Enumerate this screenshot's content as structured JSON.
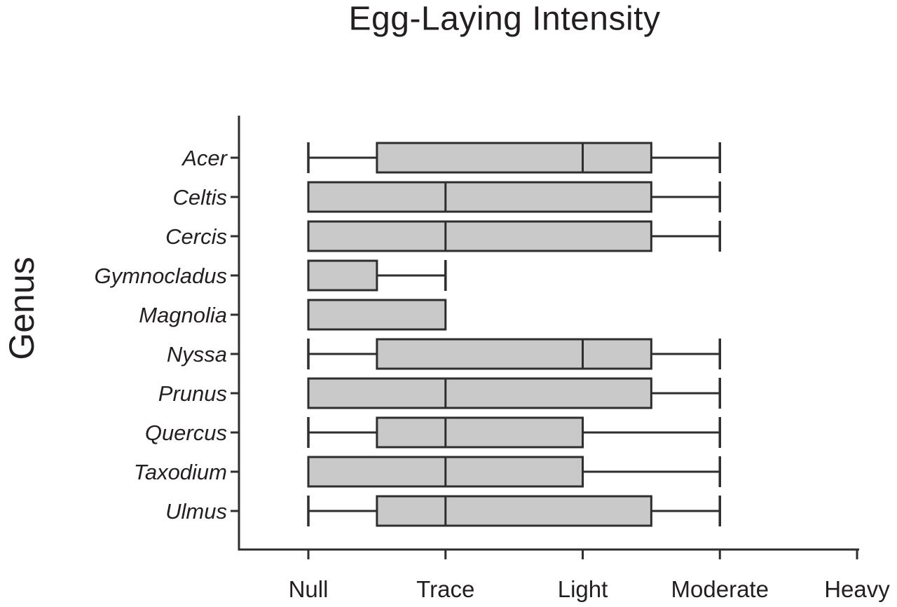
{
  "title": "Egg-Laying Intensity",
  "chart_data": {
    "type": "boxplot",
    "orientation": "horizontal",
    "title": "Egg-Laying Intensity",
    "ylabel": "Genus",
    "xlabel": "",
    "x_tick_labels": [
      "Null",
      "Trace",
      "Light",
      "Moderate",
      "Heavy"
    ],
    "x_tick_values": [
      1,
      2,
      3,
      4,
      5
    ],
    "xlim": [
      1,
      5
    ],
    "categories": [
      "Acer",
      "Celtis",
      "Cercis",
      "Gymnocladus",
      "Magnolia",
      "Nyssa",
      "Prunus",
      "Quercus",
      "Taxodium",
      "Ulmus"
    ],
    "series": [
      {
        "name": "Acer",
        "whisker_low": 1,
        "q1": 1.5,
        "median": 3,
        "q3": 3.5,
        "whisker_high": 4
      },
      {
        "name": "Celtis",
        "whisker_low": 1,
        "q1": 1,
        "median": 2,
        "q3": 3.5,
        "whisker_high": 4
      },
      {
        "name": "Cercis",
        "whisker_low": 1,
        "q1": 1,
        "median": 2,
        "q3": 3.5,
        "whisker_high": 4
      },
      {
        "name": "Gymnocladus",
        "whisker_low": 1,
        "q1": 1,
        "median": 1,
        "q3": 1.5,
        "whisker_high": 2
      },
      {
        "name": "Magnolia",
        "whisker_low": 1,
        "q1": 1,
        "median": 2,
        "q3": 2,
        "whisker_high": 2
      },
      {
        "name": "Nyssa",
        "whisker_low": 1,
        "q1": 1.5,
        "median": 3,
        "q3": 3.5,
        "whisker_high": 4
      },
      {
        "name": "Prunus",
        "whisker_low": 1,
        "q1": 1,
        "median": 2,
        "q3": 3.5,
        "whisker_high": 4
      },
      {
        "name": "Quercus",
        "whisker_low": 1,
        "q1": 1.5,
        "median": 2,
        "q3": 3,
        "whisker_high": 4
      },
      {
        "name": "Taxodium",
        "whisker_low": 1,
        "q1": 1,
        "median": 2,
        "q3": 3,
        "whisker_high": 4
      },
      {
        "name": "Ulmus",
        "whisker_low": 1,
        "q1": 1.5,
        "median": 2,
        "q3": 3.5,
        "whisker_high": 4
      }
    ],
    "grid": false,
    "legend": null,
    "colors": {
      "box_fill": "#c9c9c9",
      "line": "#2e2e2e",
      "text": "#231f20"
    }
  }
}
